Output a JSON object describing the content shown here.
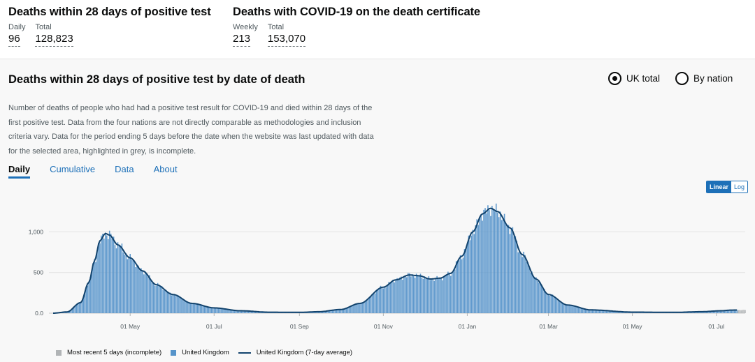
{
  "headlines": [
    {
      "title": "Deaths within 28 days of positive test",
      "metrics": [
        {
          "label": "Daily",
          "value": "96"
        },
        {
          "label": "Total",
          "value": "128,823"
        }
      ]
    },
    {
      "title": "Deaths with COVID-19 on the death certificate",
      "metrics": [
        {
          "label": "Weekly",
          "value": "213"
        },
        {
          "label": "Total",
          "value": "153,070"
        }
      ]
    }
  ],
  "card": {
    "title": "Deaths within 28 days of positive test by date of death",
    "radios": [
      {
        "label": "UK total",
        "checked": true
      },
      {
        "label": "By nation",
        "checked": false
      }
    ],
    "description": "Number of deaths of people who had had a positive test result for COVID-19 and died within 28 days of the first positive test. Data from the four nations are not directly comparable as methodologies and inclusion criteria vary. Data for the period ending 5 days before the date when the website was last updated with data for the selected area, highlighted in grey, is incomplete.",
    "tabs": [
      "Daily",
      "Cumulative",
      "Data",
      "About"
    ],
    "active_tab": "Daily",
    "scale_options": [
      "Linear",
      "Log"
    ],
    "active_scale": "Linear"
  },
  "colors": {
    "bars": "#5694ca",
    "line": "#12436d",
    "incomplete": "#b1b4b6",
    "link": "#1d70b8"
  },
  "chart_data": {
    "type": "bar",
    "x_start": "2020-03-06",
    "x_end": "2021-07-22",
    "ylim": [
      0,
      1400
    ],
    "y_ticks": [
      0,
      500,
      1000
    ],
    "y_tick_labels": [
      "0.0",
      "500",
      "1,000"
    ],
    "x_ticks": [
      {
        "date": "2020-05-01",
        "label": "01 May"
      },
      {
        "date": "2020-07-01",
        "label": "01 Jul"
      },
      {
        "date": "2020-09-01",
        "label": "01 Sep"
      },
      {
        "date": "2020-11-01",
        "label": "01 Nov"
      },
      {
        "date": "2021-01-01",
        "label": "01 Jan"
      },
      {
        "date": "2021-03-01",
        "label": "01 Mar"
      },
      {
        "date": "2021-05-01",
        "label": "01 May"
      },
      {
        "date": "2021-07-01",
        "label": "01 Jul"
      }
    ],
    "seven_day_average_keypoints": [
      [
        "2020-03-06",
        0
      ],
      [
        "2020-03-16",
        15
      ],
      [
        "2020-03-26",
        130
      ],
      [
        "2020-04-01",
        380
      ],
      [
        "2020-04-05",
        640
      ],
      [
        "2020-04-09",
        890
      ],
      [
        "2020-04-13",
        980
      ],
      [
        "2020-04-16",
        960
      ],
      [
        "2020-04-22",
        840
      ],
      [
        "2020-05-01",
        680
      ],
      [
        "2020-05-10",
        520
      ],
      [
        "2020-05-20",
        350
      ],
      [
        "2020-06-01",
        230
      ],
      [
        "2020-06-15",
        120
      ],
      [
        "2020-07-01",
        65
      ],
      [
        "2020-07-20",
        30
      ],
      [
        "2020-08-10",
        12
      ],
      [
        "2020-09-01",
        10
      ],
      [
        "2020-09-15",
        18
      ],
      [
        "2020-10-01",
        45
      ],
      [
        "2020-10-15",
        120
      ],
      [
        "2020-11-01",
        320
      ],
      [
        "2020-11-10",
        410
      ],
      [
        "2020-11-20",
        470
      ],
      [
        "2020-11-27",
        460
      ],
      [
        "2020-12-05",
        420
      ],
      [
        "2020-12-12",
        430
      ],
      [
        "2020-12-20",
        490
      ],
      [
        "2020-12-28",
        700
      ],
      [
        "2021-01-05",
        1000
      ],
      [
        "2021-01-12",
        1220
      ],
      [
        "2021-01-18",
        1290
      ],
      [
        "2021-01-23",
        1250
      ],
      [
        "2021-02-01",
        1050
      ],
      [
        "2021-02-10",
        720
      ],
      [
        "2021-02-20",
        420
      ],
      [
        "2021-03-01",
        230
      ],
      [
        "2021-03-15",
        100
      ],
      [
        "2021-04-01",
        40
      ],
      [
        "2021-05-01",
        13
      ],
      [
        "2021-06-01",
        10
      ],
      [
        "2021-06-20",
        18
      ],
      [
        "2021-07-05",
        30
      ],
      [
        "2021-07-12",
        38
      ],
      [
        "2021-07-22",
        40
      ]
    ],
    "incomplete_from": "2021-07-17",
    "legend": [
      {
        "label": "Most recent 5 days (incomplete)",
        "type": "grey-bar"
      },
      {
        "label": "United Kingdom",
        "type": "bar"
      },
      {
        "label": "United Kingdom (7-day average)",
        "type": "line"
      }
    ]
  }
}
